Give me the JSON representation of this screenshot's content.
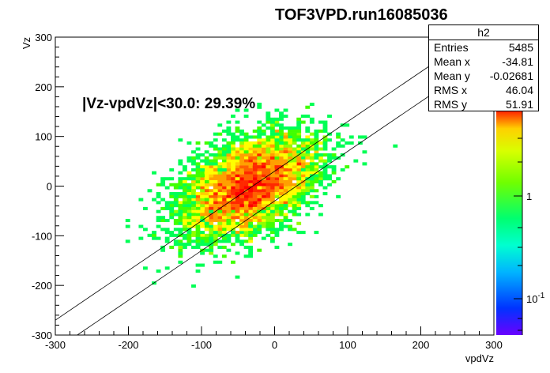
{
  "title": "TOF3VPD.run16085036",
  "annotation": "|Vz-vpdVz|<30.0: 29.39%",
  "stats": {
    "name": "h2",
    "rows": [
      {
        "label": "Entries",
        "value": "5485"
      },
      {
        "label": "Mean x",
        "value": "-34.81"
      },
      {
        "label": "Mean y",
        "value": "-0.02681"
      },
      {
        "label": "RMS x",
        "value": "46.04"
      },
      {
        "label": "RMS y",
        "value": "51.91"
      }
    ]
  },
  "chart_data": {
    "type": "heatmap",
    "title": "TOF3VPD.run16085036",
    "xlabel": "vpdVz",
    "ylabel": "Vz",
    "xlim": [
      -300,
      300
    ],
    "ylim": [
      -300,
      300
    ],
    "x_ticks": [
      "-300",
      "-200",
      "-100",
      "0",
      "100",
      "200",
      "300"
    ],
    "y_ticks": [
      "-300",
      "-200",
      "-100",
      "0",
      "100",
      "200",
      "300"
    ],
    "colorbar": {
      "scale": "log",
      "labels": [
        "1",
        "10^-1"
      ]
    },
    "distribution": {
      "entries": 5485,
      "mean_x": -34.81,
      "mean_y": -0.02681,
      "rms_x": 46.04,
      "rms_y": 51.91
    },
    "cut_lines": [
      {
        "slope": 1,
        "intercept": 30
      },
      {
        "slope": 1,
        "intercept": -30
      }
    ],
    "annotation": "|Vz-vpdVz|<30.0: 29.39%",
    "grid": false,
    "legend": "top-right"
  }
}
